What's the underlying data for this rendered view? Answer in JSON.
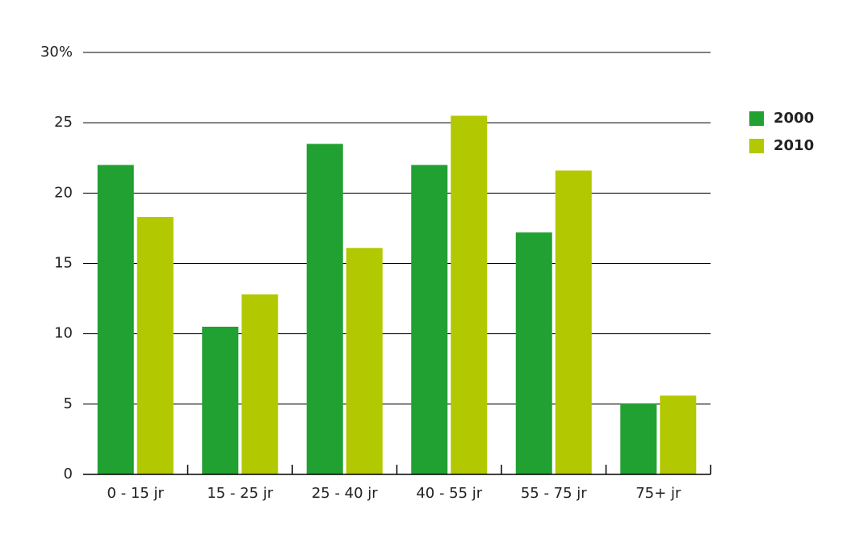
{
  "chart_data": {
    "type": "bar",
    "categories": [
      "0 - 15 jr",
      "15 - 25 jr",
      "25 - 40 jr",
      "40 - 55 jr",
      "55 - 75 jr",
      "75+ jr"
    ],
    "series": [
      {
        "name": "2000",
        "color": "#21a131",
        "values": [
          22,
          10.5,
          23.5,
          22,
          17.2,
          5
        ]
      },
      {
        "name": "2010",
        "color": "#b2c800",
        "values": [
          18.3,
          12.8,
          16.1,
          25.5,
          21.6,
          5.6
        ]
      }
    ],
    "ylim": [
      0,
      30
    ],
    "yticks": [
      0,
      5,
      10,
      15,
      20,
      25,
      {
        "value": 30,
        "label": "30%"
      }
    ],
    "grid": true,
    "legend": "right"
  }
}
